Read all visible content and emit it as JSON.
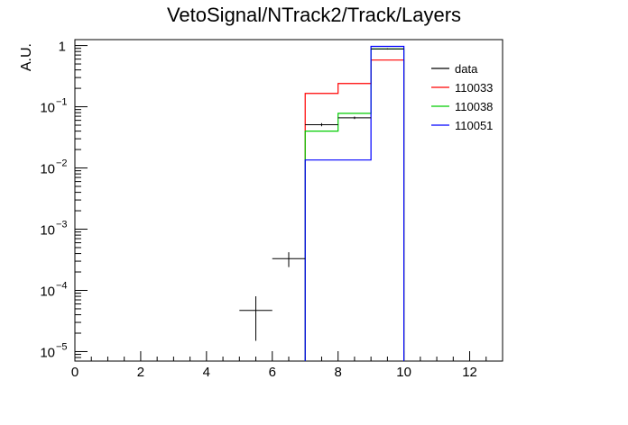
{
  "chart_data": {
    "type": "histogram",
    "title": "VetoSignal/NTrack2/Track/Layers",
    "xlabel": "",
    "ylabel": "A.U.",
    "xlim": [
      0,
      13
    ],
    "ylim": [
      7e-06,
      1.25
    ],
    "log_y": true,
    "grid": false,
    "legend_position": "top-right",
    "x_ticks": [
      0,
      2,
      4,
      6,
      8,
      10,
      12
    ],
    "y_ticks": [
      {
        "value": 1e-05,
        "mantissa": "10",
        "exp": "−5"
      },
      {
        "value": 0.0001,
        "mantissa": "10",
        "exp": "−4"
      },
      {
        "value": 0.001,
        "mantissa": "10",
        "exp": "−3"
      },
      {
        "value": 0.01,
        "mantissa": "10",
        "exp": "−2"
      },
      {
        "value": 0.1,
        "mantissa": "10",
        "exp": "−1"
      },
      {
        "value": 1,
        "mantissa": "1",
        "exp": ""
      }
    ],
    "series": [
      {
        "name": "110033",
        "color": "#ff0000",
        "style": "step",
        "bins": [
          {
            "x0": 7,
            "x1": 8,
            "y": 0.165
          },
          {
            "x0": 8,
            "x1": 9,
            "y": 0.24
          },
          {
            "x0": 9,
            "x1": 10,
            "y": 0.58
          }
        ]
      },
      {
        "name": "110038",
        "color": "#00cc00",
        "style": "step",
        "bins": [
          {
            "x0": 7,
            "x1": 8,
            "y": 0.04
          },
          {
            "x0": 8,
            "x1": 9,
            "y": 0.078
          },
          {
            "x0": 9,
            "x1": 10,
            "y": 0.88
          }
        ]
      },
      {
        "name": "110051",
        "color": "#0000ff",
        "style": "step",
        "bins": [
          {
            "x0": 7,
            "x1": 8,
            "y": 0.0135
          },
          {
            "x0": 8,
            "x1": 9,
            "y": 0.0135
          },
          {
            "x0": 9,
            "x1": 10,
            "y": 0.97
          }
        ]
      },
      {
        "name": "data",
        "color": "#000000",
        "style": "errorbar",
        "points": [
          {
            "x0": 5,
            "x1": 6,
            "y": 4.7e-05,
            "ylo": 1.5e-05,
            "yhi": 8e-05
          },
          {
            "x0": 6,
            "x1": 7,
            "y": 0.00033,
            "ylo": 0.00024,
            "yhi": 0.00042
          },
          {
            "x0": 7,
            "x1": 8,
            "y": 0.051,
            "ylo": 0.048,
            "yhi": 0.054
          },
          {
            "x0": 8,
            "x1": 9,
            "y": 0.066,
            "ylo": 0.063,
            "yhi": 0.069
          },
          {
            "x0": 9,
            "x1": 10,
            "y": 0.88,
            "ylo": 0.86,
            "yhi": 0.9
          }
        ]
      }
    ],
    "legend_order": [
      "data",
      "110033",
      "110038",
      "110051"
    ]
  }
}
